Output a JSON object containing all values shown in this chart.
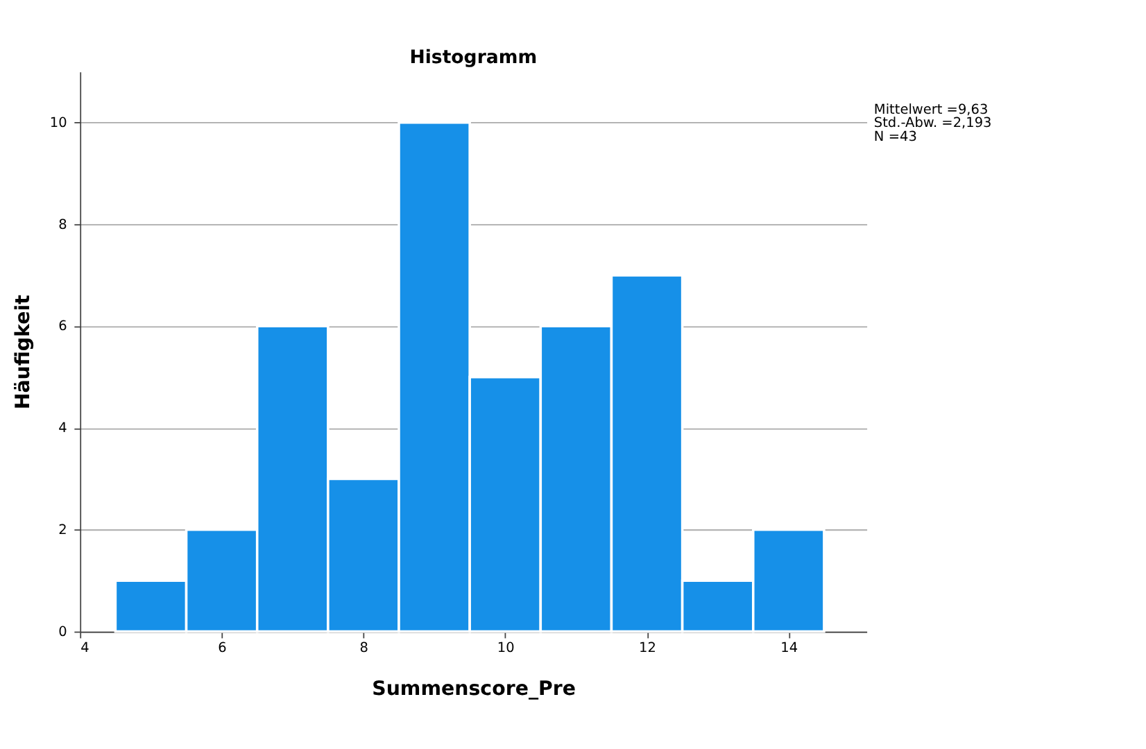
{
  "chart_data": {
    "type": "histogram",
    "title": "Histogramm",
    "xlabel": "Summenscore_Pre",
    "ylabel": "Häufigkeit",
    "bins": [
      4.5,
      5.5,
      6.5,
      7.5,
      8.5,
      9.5,
      10.5,
      11.5,
      12.5,
      13.5,
      14.5
    ],
    "values": [
      1,
      2,
      6,
      3,
      10,
      5,
      6,
      7,
      1,
      2
    ],
    "color": "#1690e8",
    "xlim": [
      4,
      15.1
    ],
    "xticks": [
      4,
      6,
      8,
      10,
      12,
      14
    ],
    "ylim": [
      0,
      11
    ],
    "yticks": [
      0,
      2,
      4,
      6,
      8,
      10
    ],
    "grid": "y",
    "annotations": [
      "Mittelwert =9,63",
      "Std.-Abw. =2,193",
      "N =43"
    ]
  }
}
